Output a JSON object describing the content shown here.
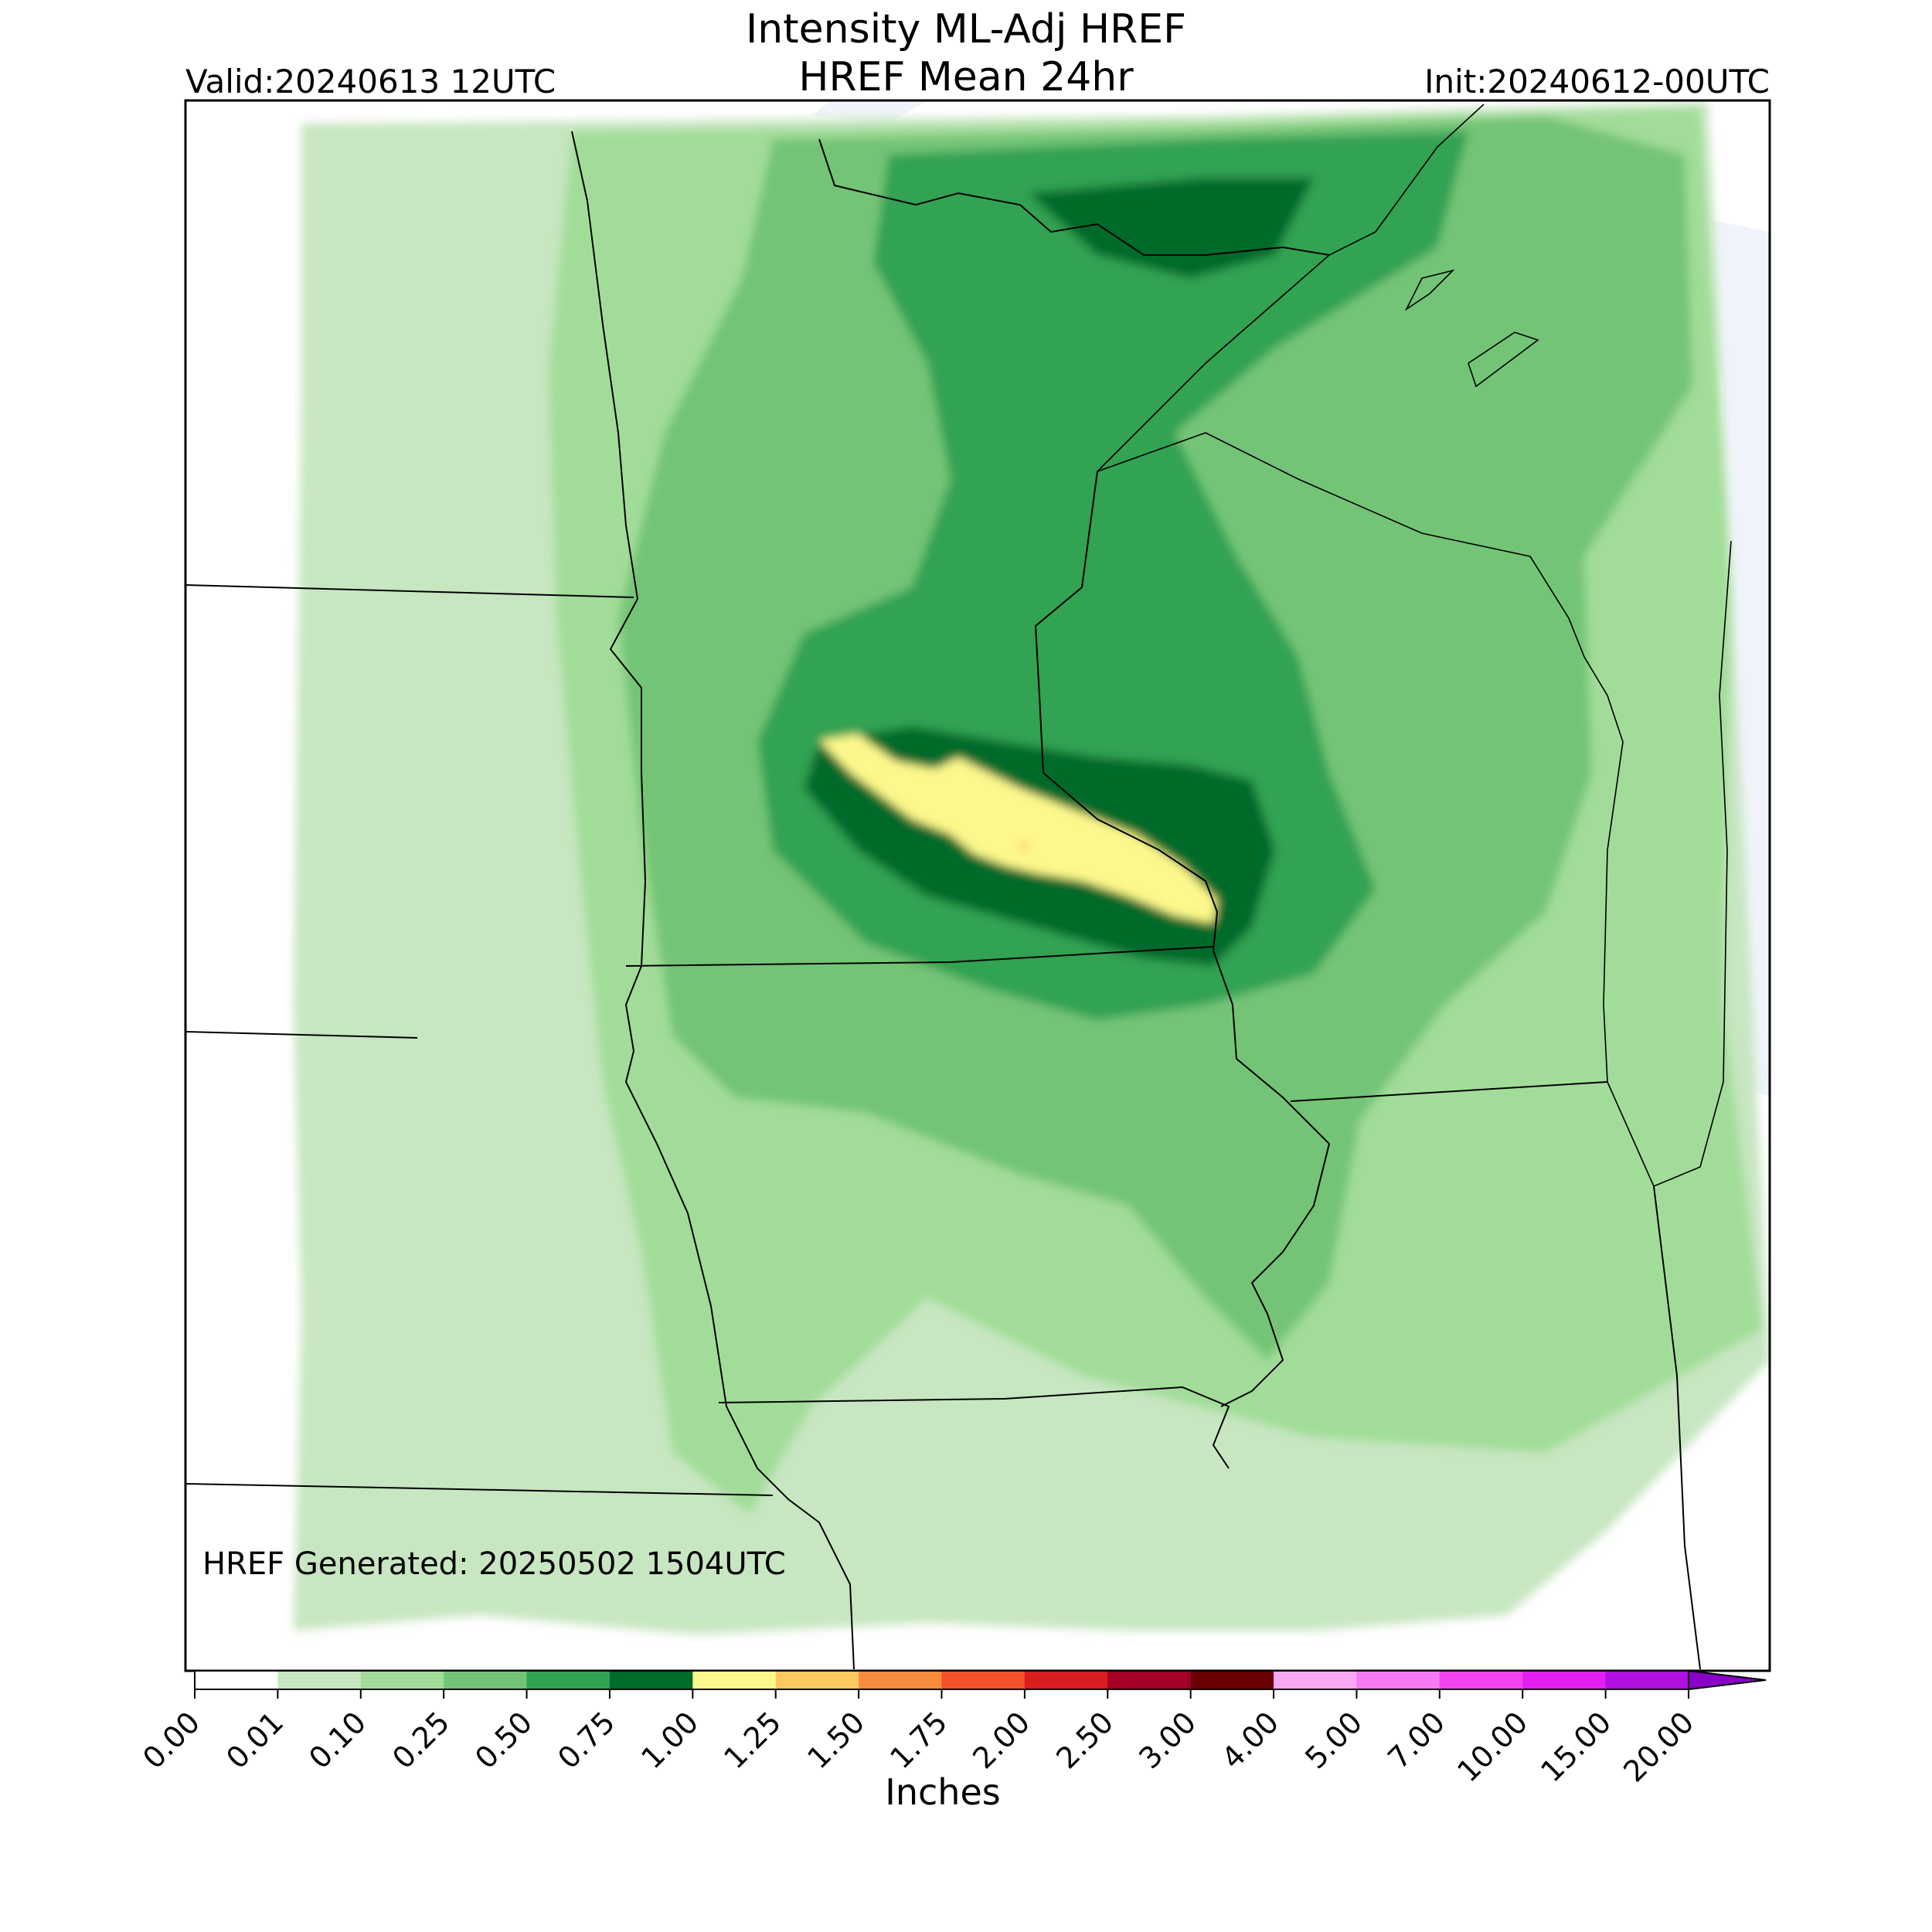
{
  "header": {
    "title_line1": "Intensity ML-Adj HREF",
    "title_line2": "HREF Mean 24hr",
    "valid": "Valid:20240613 12UTC",
    "init": "Init:20240612-00UTC"
  },
  "map": {
    "footer_note": "HREF Generated: 20250502 1504UTC",
    "land_color": "#ffffff",
    "water_color": "#f0f4fa",
    "border_color": "#000000"
  },
  "colorbar": {
    "label": "Inches",
    "ticks": [
      "0.00",
      "0.01",
      "0.10",
      "0.25",
      "0.50",
      "0.75",
      "1.00",
      "1.25",
      "1.50",
      "1.75",
      "2.00",
      "2.50",
      "3.00",
      "4.00",
      "5.00",
      "7.00",
      "10.00",
      "15.00",
      "20.00"
    ],
    "colors": [
      "#ffffff",
      "#c7e6c1",
      "#a1dd98",
      "#73c476",
      "#31a252",
      "#006b2b",
      "#fdf88c",
      "#fbc95f",
      "#f88c3d",
      "#f2512a",
      "#d81e20",
      "#a50026",
      "#6b0003",
      "#f9a8f4",
      "#f57af2",
      "#f542f0",
      "#e21ff0",
      "#b010e0",
      "#8a00c8"
    ]
  }
}
